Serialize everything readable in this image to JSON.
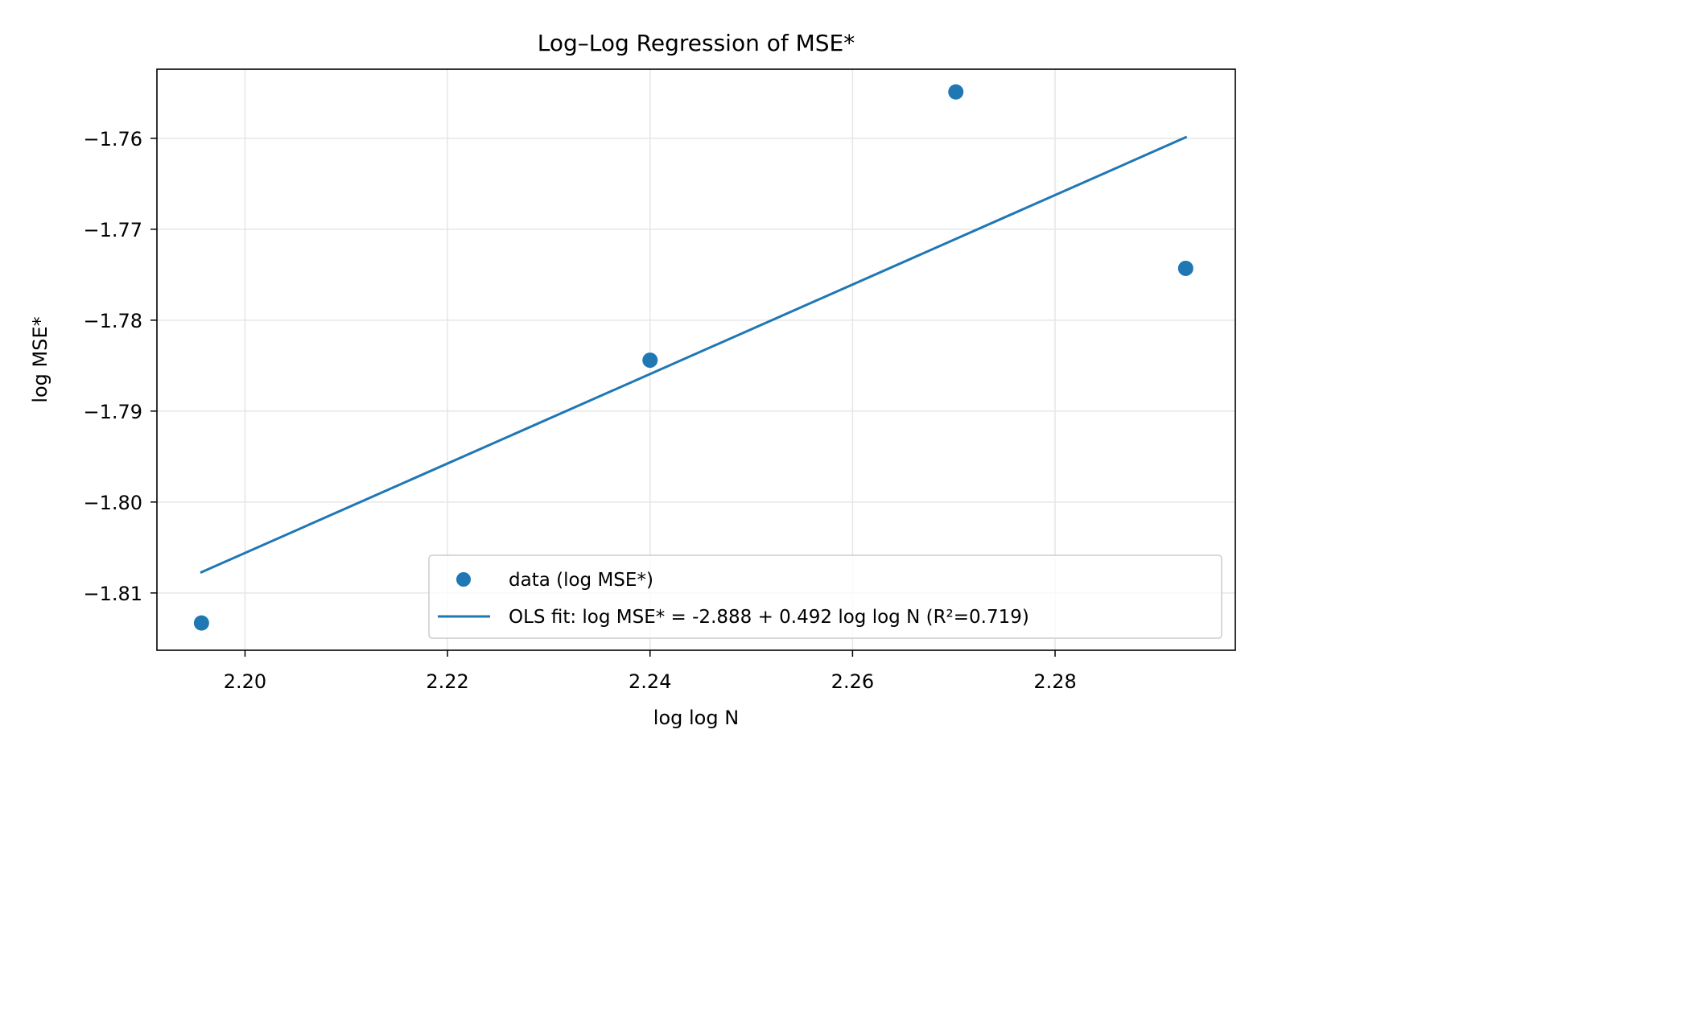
{
  "chart_data": {
    "type": "scatter",
    "title": "Log–Log Regression of MSE*",
    "xlabel": "log log N",
    "ylabel": "log MSE*",
    "xlim": [
      2.1913,
      2.2978
    ],
    "ylim": [
      -1.8163,
      -1.7524
    ],
    "xticks": [
      2.2,
      2.22,
      2.24,
      2.26,
      2.28
    ],
    "yticks": [
      -1.76,
      -1.77,
      -1.78,
      -1.79,
      -1.8,
      -1.81
    ],
    "xtick_labels": [
      "2.20",
      "2.22",
      "2.24",
      "2.26",
      "2.28"
    ],
    "ytick_labels": [
      "−1.76",
      "−1.77",
      "−1.78",
      "−1.79",
      "−1.80",
      "−1.81"
    ],
    "grid": true,
    "legend_position": "lower-right",
    "series": [
      {
        "name": "data (log MSE*)",
        "kind": "scatter",
        "color": "#1f77b4",
        "points": [
          {
            "x": 2.1957,
            "y": -1.8133
          },
          {
            "x": 2.24,
            "y": -1.7844
          },
          {
            "x": 2.2702,
            "y": -1.7549
          },
          {
            "x": 2.2929,
            "y": -1.7743
          }
        ]
      },
      {
        "name": "OLS fit: log MSE* = -2.888 + 0.492 log log N (R²=0.719)",
        "kind": "line",
        "color": "#1f77b4",
        "intercept": -2.888,
        "slope": 0.492,
        "x_range": [
          2.1957,
          2.2929
        ]
      }
    ]
  }
}
